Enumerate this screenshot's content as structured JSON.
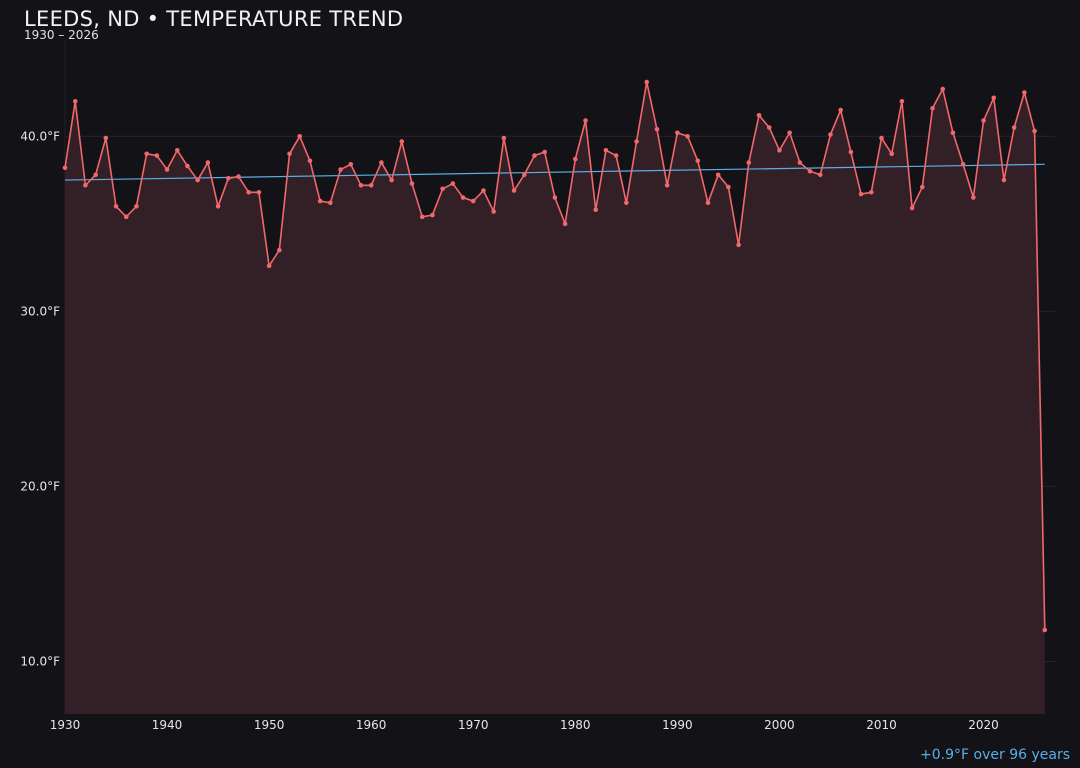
{
  "header": {
    "title": "LEEDS, ND • TEMPERATURE TREND",
    "subtitle": "1930 – 2026"
  },
  "footer": {
    "trend_note": "+0.9°F over 96 years"
  },
  "colors": {
    "background": "#131217",
    "line": "#f0686c",
    "area_fill": "#331f26",
    "trend": "#5aaee8",
    "grid": "#2a2330"
  },
  "chart_data": {
    "type": "area",
    "title": "LEEDS, ND • TEMPERATURE TREND",
    "subtitle": "1930 – 2026",
    "xlabel": "",
    "ylabel": "",
    "xlim": [
      1930,
      2027
    ],
    "ylim": [
      7,
      45.5
    ],
    "x_ticks": [
      1930,
      1940,
      1950,
      1960,
      1970,
      1980,
      1990,
      2000,
      2010,
      2020
    ],
    "y_ticks": [
      10,
      20,
      30,
      40
    ],
    "y_tick_labels": [
      "10.0°F",
      "20.0°F",
      "30.0°F",
      "40.0°F"
    ],
    "grid": true,
    "series": [
      {
        "x": [
          1930,
          1931,
          1932,
          1933,
          1934,
          1935,
          1936,
          1937,
          1938,
          1939,
          1940,
          1941,
          1942,
          1943,
          1944,
          1945,
          1946,
          1947,
          1948,
          1949,
          1950,
          1951,
          1952,
          1953,
          1954,
          1955,
          1956,
          1957,
          1958,
          1959,
          1960,
          1961,
          1962,
          1963,
          1964,
          1965,
          1966,
          1967,
          1968,
          1969,
          1970,
          1971,
          1972,
          1973,
          1974,
          1975,
          1976,
          1977,
          1978,
          1979,
          1980,
          1981,
          1982,
          1983,
          1984,
          1985,
          1986,
          1987,
          1988,
          1989,
          1990,
          1991,
          1992,
          1993,
          1994,
          1995,
          1996,
          1997,
          1998,
          1999,
          2000,
          2001,
          2002,
          2003,
          2004,
          2005,
          2006,
          2007,
          2008,
          2009,
          2010,
          2011,
          2012,
          2013,
          2014,
          2015,
          2016,
          2017,
          2018,
          2019,
          2020,
          2021,
          2022,
          2023,
          2024,
          2025,
          2026
        ],
        "values": [
          38.2,
          42.0,
          37.2,
          37.8,
          39.9,
          36.0,
          35.4,
          36.0,
          39.0,
          38.9,
          38.1,
          39.2,
          38.3,
          37.5,
          38.5,
          36.0,
          37.6,
          37.7,
          36.8,
          36.8,
          32.6,
          33.5,
          39.0,
          40.0,
          38.6,
          36.3,
          36.2,
          38.1,
          38.4,
          37.2,
          37.2,
          38.5,
          37.5,
          39.7,
          37.3,
          35.4,
          35.5,
          37.0,
          37.3,
          36.5,
          36.3,
          36.9,
          35.7,
          39.9,
          36.9,
          37.8,
          38.9,
          39.1,
          36.5,
          35.0,
          38.7,
          40.9,
          35.8,
          39.2,
          38.9,
          36.2,
          39.7,
          43.1,
          40.4,
          37.2,
          40.2,
          40.0,
          38.6,
          36.2,
          37.8,
          37.1,
          33.8,
          38.5,
          41.2,
          40.5,
          39.2,
          40.2,
          38.5,
          38.0,
          37.8,
          40.1,
          41.5,
          39.1,
          36.7,
          36.8,
          39.9,
          39.0,
          42.0,
          35.9,
          37.1,
          41.6,
          42.7,
          40.2,
          38.4,
          36.5,
          40.9,
          42.2,
          37.5,
          40.5,
          42.5,
          40.3,
          11.8
        ]
      }
    ],
    "trend_line": {
      "x": [
        1930,
        2026
      ],
      "values": [
        37.5,
        38.4
      ]
    }
  }
}
